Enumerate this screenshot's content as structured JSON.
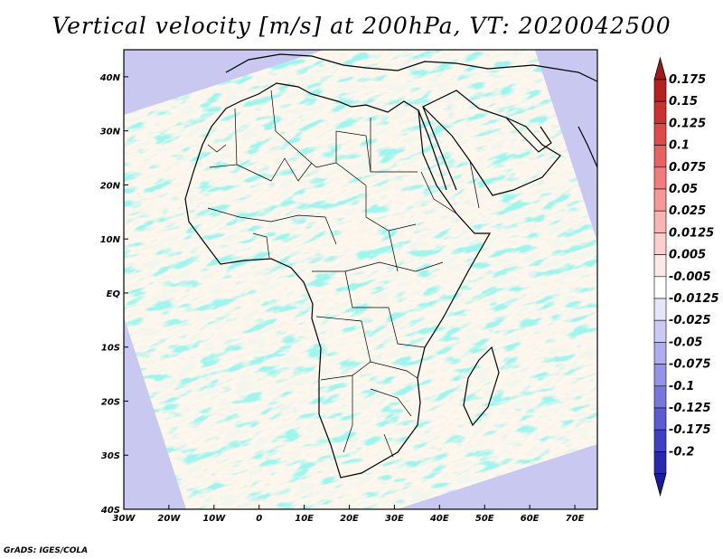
{
  "title": "Vertical velocity [m/s] at 200hPa, VT: 2020042500",
  "credit": "GrADS: IGES/COLA",
  "map": {
    "lon_range": [
      -30,
      75
    ],
    "lat_range": [
      -40,
      45
    ],
    "lat_ticks": [
      {
        "value": 40,
        "label": "40N"
      },
      {
        "value": 30,
        "label": "30N"
      },
      {
        "value": 20,
        "label": "20N"
      },
      {
        "value": 10,
        "label": "10N"
      },
      {
        "value": 0,
        "label": "EQ"
      },
      {
        "value": -10,
        "label": "10S"
      },
      {
        "value": -20,
        "label": "20S"
      },
      {
        "value": -30,
        "label": "30S"
      },
      {
        "value": -40,
        "label": "40S"
      }
    ],
    "lon_ticks": [
      {
        "value": -30,
        "label": "30W"
      },
      {
        "value": -20,
        "label": "20W"
      },
      {
        "value": -10,
        "label": "10W"
      },
      {
        "value": 0,
        "label": "0"
      },
      {
        "value": 10,
        "label": "10E"
      },
      {
        "value": 20,
        "label": "20E"
      },
      {
        "value": 30,
        "label": "30E"
      },
      {
        "value": 40,
        "label": "40E"
      },
      {
        "value": 50,
        "label": "50E"
      },
      {
        "value": 60,
        "label": "60E"
      },
      {
        "value": 70,
        "label": "70E"
      }
    ]
  },
  "colorbar": {
    "levels": [
      {
        "label": "0.175",
        "color": "#b52020"
      },
      {
        "label": "0.15",
        "color": "#cc3131"
      },
      {
        "label": "0.125",
        "color": "#dd4a4a"
      },
      {
        "label": "0.1",
        "color": "#e86262"
      },
      {
        "label": "0.075",
        "color": "#f07c7c"
      },
      {
        "label": "0.05",
        "color": "#f59898"
      },
      {
        "label": "0.025",
        "color": "#f9b4b4"
      },
      {
        "label": "0.0125",
        "color": "#fccfcf"
      },
      {
        "label": "0.005",
        "color": "#fde8e8"
      },
      {
        "label": "-0.005",
        "color": "#ffffff"
      },
      {
        "label": "-0.0125",
        "color": "#e6e6fa"
      },
      {
        "label": "-0.025",
        "color": "#cacaf4"
      },
      {
        "label": "-0.05",
        "color": "#aeaeee"
      },
      {
        "label": "-0.075",
        "color": "#9494e6"
      },
      {
        "label": "-0.1",
        "color": "#7878dc"
      },
      {
        "label": "-0.125",
        "color": "#5c5cd2"
      },
      {
        "label": "-0.175",
        "color": "#3f3fc4"
      },
      {
        "label": "-0.2",
        "color": "#2828b0"
      }
    ],
    "top_triangle_color": "#a01818",
    "bottom_triangle_color": "#1a1aa0"
  }
}
